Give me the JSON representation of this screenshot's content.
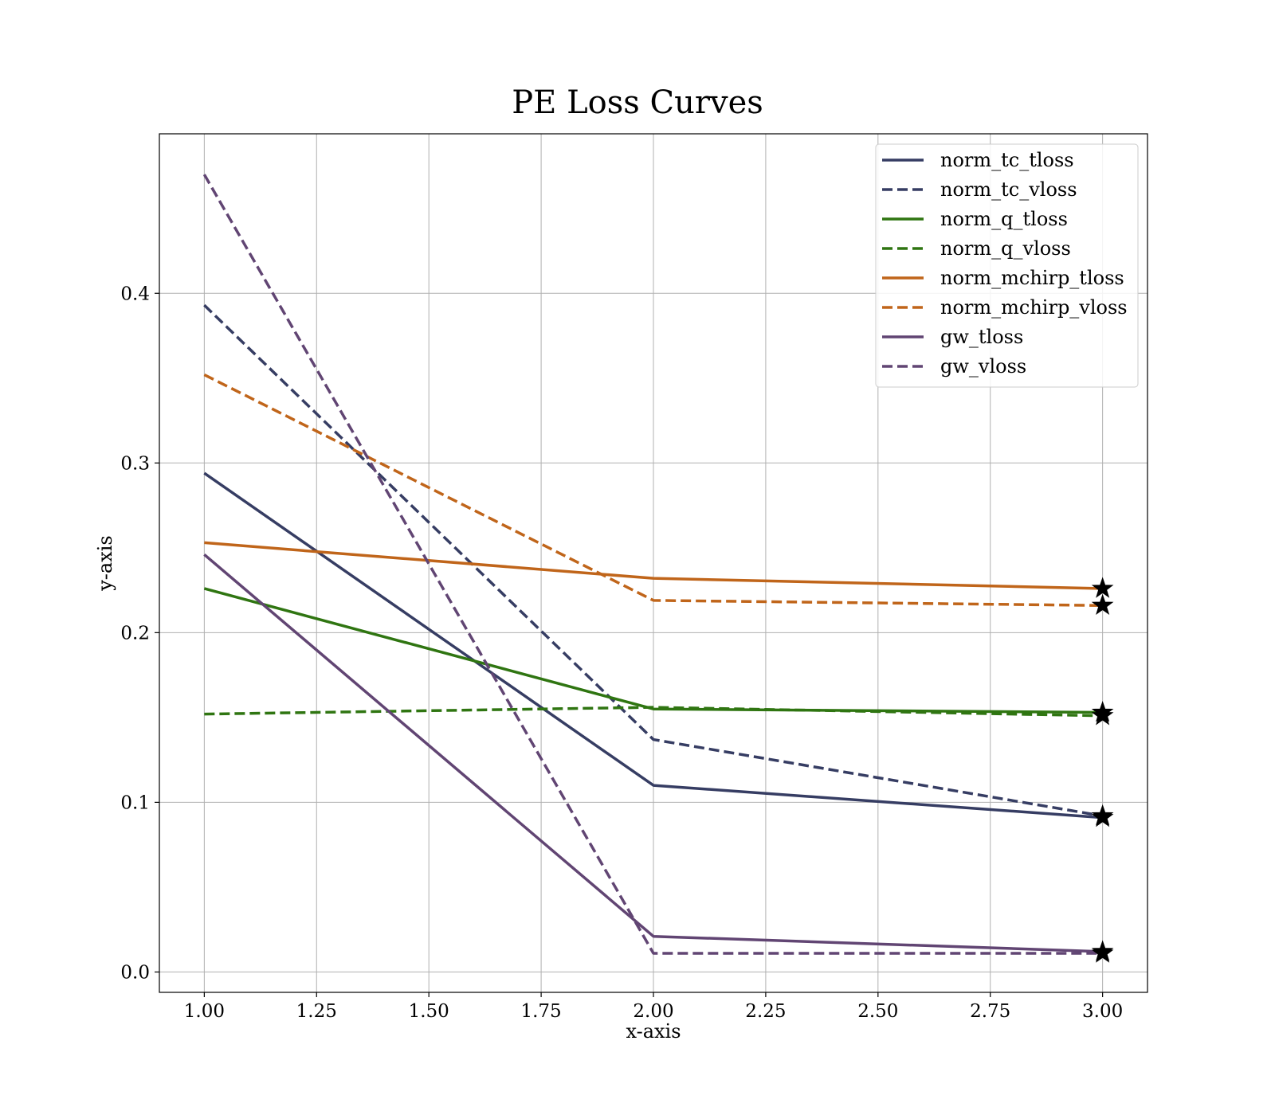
{
  "chart_data": {
    "type": "line",
    "title": "PE Loss Curves",
    "xlabel": "x-axis",
    "ylabel": "y-axis",
    "xlim": [
      0.9,
      3.1
    ],
    "ylim": [
      -0.012,
      0.494
    ],
    "xticks": [
      1.0,
      1.25,
      1.5,
      1.75,
      2.0,
      2.25,
      2.5,
      2.75,
      3.0
    ],
    "xtick_labels": [
      "1.00",
      "1.25",
      "1.50",
      "1.75",
      "2.00",
      "2.25",
      "2.50",
      "2.75",
      "3.00"
    ],
    "yticks": [
      0.0,
      0.1,
      0.2,
      0.3,
      0.4
    ],
    "ytick_labels": [
      "0.0",
      "0.1",
      "0.2",
      "0.3",
      "0.4"
    ],
    "grid": true,
    "legend_position": "top-right",
    "x": [
      1,
      2,
      3
    ],
    "series": [
      {
        "name": "norm_tc_tloss",
        "values": [
          0.294,
          0.11,
          0.091
        ],
        "color": "#363d63",
        "dashed": false
      },
      {
        "name": "norm_tc_vloss",
        "values": [
          0.393,
          0.137,
          0.092
        ],
        "color": "#363d63",
        "dashed": true
      },
      {
        "name": "norm_q_tloss",
        "values": [
          0.226,
          0.155,
          0.153
        ],
        "color": "#2f7511",
        "dashed": false
      },
      {
        "name": "norm_q_vloss",
        "values": [
          0.152,
          0.156,
          0.151
        ],
        "color": "#2f7511",
        "dashed": true
      },
      {
        "name": "norm_mchirp_tloss",
        "values": [
          0.253,
          0.232,
          0.226
        ],
        "color": "#c0651a",
        "dashed": false
      },
      {
        "name": "norm_mchirp_vloss",
        "values": [
          0.352,
          0.219,
          0.216
        ],
        "color": "#c0651a",
        "dashed": true
      },
      {
        "name": "gw_tloss",
        "values": [
          0.246,
          0.021,
          0.012
        ],
        "color": "#614573",
        "dashed": false
      },
      {
        "name": "gw_vloss",
        "values": [
          0.47,
          0.011,
          0.011
        ],
        "color": "#614573",
        "dashed": true
      }
    ],
    "end_marker": "star"
  }
}
